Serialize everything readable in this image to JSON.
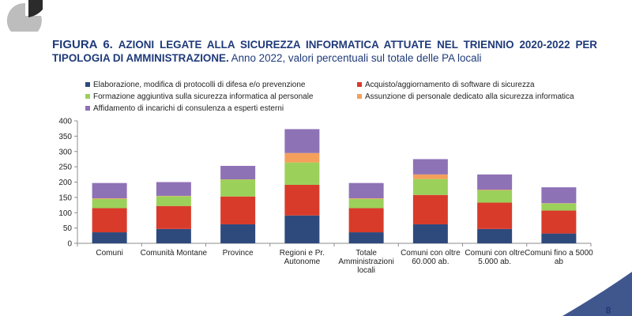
{
  "heading": {
    "label": "FIGURA 6.",
    "title": "AZIONI LEGATE ALLA SICUREZZA INFORMATICA ATTUATE NEL TRIENNIO 2020-2022 PER TIPOLOGIA DI AMMINISTRAZIONE.",
    "subtitle": "Anno 2022, valori percentuali sul totale delle PA locali"
  },
  "page_number": "8",
  "colors": {
    "heading": "#1F3A7A",
    "logo_dark": "#2B2B2B",
    "logo_light": "#BDBDBD",
    "decor": "#1F3A7A"
  },
  "chart_data": {
    "type": "bar",
    "stacked": true,
    "categories": [
      "Comuni",
      "Comunità Montane",
      "Province",
      "Regioni e Pr. Autonome",
      "Totale Amministrazioni locali",
      "Comuni con oltre 60.000 ab.",
      "Comuni con oltre 5.000 ab.",
      "Comuni fino a 5000 ab"
    ],
    "series": [
      {
        "name": "Elaborazione, modifica di protocolli di difesa e/o prevenzione",
        "color": "#2E4A7D",
        "values": [
          36,
          47,
          62,
          91,
          36,
          62,
          47,
          32
        ]
      },
      {
        "name": "Acquisto/aggiornamento di software di sicurezza",
        "color": "#D93B2B",
        "values": [
          79,
          75,
          91,
          100,
          79,
          96,
          86,
          75
        ]
      },
      {
        "name": "Formazione aggiuntiva sulla sicurezza informatica al personale",
        "color": "#9BD15A",
        "values": [
          30,
          32,
          55,
          73,
          30,
          52,
          40,
          23
        ]
      },
      {
        "name": "Assunzione di personale dedicato alla sicurezza informatica",
        "color": "#F4A05C",
        "values": [
          2,
          1,
          1,
          31,
          2,
          15,
          2,
          1
        ]
      },
      {
        "name": "Affidamento di incarichi di consulenza a esperti esterni",
        "color": "#8E72B6",
        "values": [
          50,
          45,
          44,
          78,
          50,
          50,
          50,
          52
        ]
      }
    ],
    "ylim": [
      0,
      400
    ],
    "yticks": [
      0,
      50,
      100,
      150,
      200,
      250,
      300,
      350,
      400
    ],
    "grid": false,
    "legend_position": "top"
  }
}
